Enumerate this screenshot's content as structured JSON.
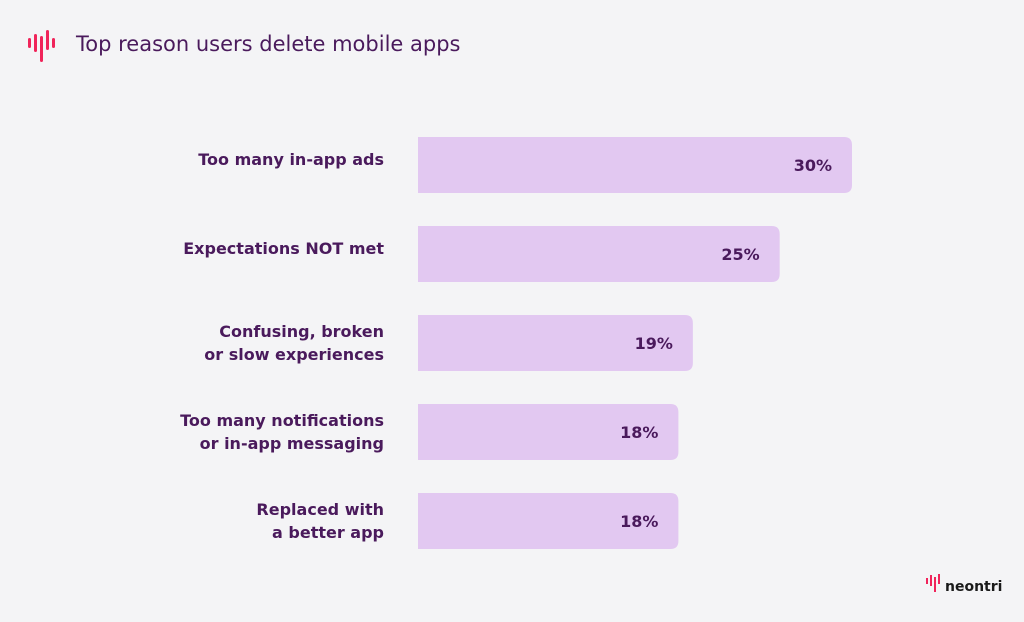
{
  "title": "Top reason users delete mobile apps",
  "brand": "neontri",
  "colors": {
    "accent": "#f0245a",
    "bar": "#e2c8f1",
    "text": "#4a1a5c",
    "background": "#f4f4f6"
  },
  "icons": {
    "title_logo": "sound-wave-icon"
  },
  "chart_data": {
    "type": "bar",
    "orientation": "horizontal",
    "title": "Top reason users delete mobile apps",
    "categories": [
      [
        "Too many in-app ads"
      ],
      [
        "Expectations NOT met"
      ],
      [
        "Confusing, broken",
        "or slow experiences"
      ],
      [
        "Too many notifications",
        "or in-app messaging"
      ],
      [
        "Replaced with",
        "a better app"
      ]
    ],
    "values": [
      30,
      25,
      19,
      18,
      18
    ],
    "value_labels": [
      "30%",
      "25%",
      "19%",
      "18%",
      "18%"
    ],
    "unit": "%",
    "xlim": [
      0,
      30
    ],
    "grid": false
  }
}
